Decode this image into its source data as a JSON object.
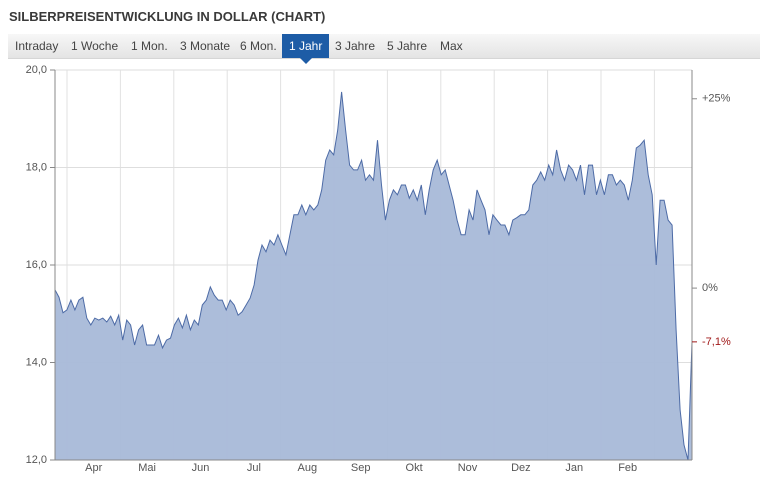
{
  "title": "SILBERPREISENTWICKLUNG IN DOLLAR (CHART)",
  "tabs": [
    "Intraday",
    "1 Woche",
    "1 Mon.",
    "3 Monate",
    "6 Mon.",
    "1 Jahr",
    "3 Jahre",
    "5 Jahre",
    "Max"
  ],
  "selected_tab": 5,
  "chart_data": {
    "type": "area",
    "color": "#4d6ba6",
    "fill": "#a8b9d8",
    "grid": true,
    "xtick_labels": [
      "Apr",
      "Mai",
      "Jun",
      "Jul",
      "Aug",
      "Sep",
      "Okt",
      "Nov",
      "Dez",
      "Jan",
      "Feb"
    ],
    "values": [
      15.49,
      15.34,
      15.02,
      15.08,
      15.28,
      15.08,
      15.28,
      15.34,
      14.91,
      14.77,
      14.91,
      14.87,
      14.91,
      14.83,
      14.95,
      14.77,
      14.97,
      14.46,
      14.87,
      14.77,
      14.36,
      14.67,
      14.77,
      14.36,
      14.36,
      14.36,
      14.56,
      14.3,
      14.46,
      14.5,
      14.77,
      14.91,
      14.71,
      14.97,
      14.67,
      14.87,
      14.77,
      15.18,
      15.28,
      15.55,
      15.38,
      15.28,
      15.28,
      15.08,
      15.28,
      15.18,
      14.97,
      15.04,
      15.18,
      15.32,
      15.59,
      16.1,
      16.41,
      16.27,
      16.51,
      16.41,
      16.62,
      16.41,
      16.21,
      16.62,
      17.03,
      17.03,
      17.23,
      17.03,
      17.23,
      17.13,
      17.23,
      17.54,
      18.15,
      18.36,
      18.26,
      18.77,
      19.55,
      18.77,
      18.05,
      17.95,
      17.95,
      18.15,
      17.74,
      17.85,
      17.74,
      18.56,
      17.64,
      16.92,
      17.33,
      17.54,
      17.44,
      17.64,
      17.64,
      17.37,
      17.54,
      17.33,
      17.64,
      17.03,
      17.54,
      17.95,
      18.15,
      17.85,
      17.95,
      17.64,
      17.33,
      16.92,
      16.62,
      16.62,
      17.13,
      16.92,
      17.54,
      17.33,
      17.13,
      16.62,
      17.03,
      16.92,
      16.82,
      16.82,
      16.62,
      16.92,
      16.97,
      17.03,
      17.03,
      17.13,
      17.64,
      17.74,
      17.91,
      17.74,
      18.05,
      17.85,
      18.36,
      17.95,
      17.74,
      18.05,
      17.95,
      17.74,
      18.05,
      17.44,
      18.05,
      18.05,
      17.44,
      17.74,
      17.44,
      17.85,
      17.85,
      17.64,
      17.74,
      17.64,
      17.33,
      17.74,
      18.4,
      18.46,
      18.56,
      17.85,
      17.44,
      16.0,
      17.33,
      17.33,
      16.92,
      16.82,
      14.67,
      13.03,
      12.31,
      12.0,
      14.42
    ],
    "ylim": [
      12,
      20
    ],
    "yticks": [
      {
        "value": 12,
        "label": "12,0"
      },
      {
        "value": 14,
        "label": "14,0"
      },
      {
        "value": 16,
        "label": "16,0"
      },
      {
        "value": 18,
        "label": "18,0"
      },
      {
        "value": 20,
        "label": "20,0"
      }
    ],
    "y2lim": [
      -22.7,
      28.8
    ],
    "y2ticks": [
      {
        "value": 25,
        "label": "+25%"
      },
      {
        "value": 0,
        "label": "0%"
      },
      {
        "value": -7.1,
        "label": "-7,1%",
        "color": "#a01818"
      }
    ]
  }
}
